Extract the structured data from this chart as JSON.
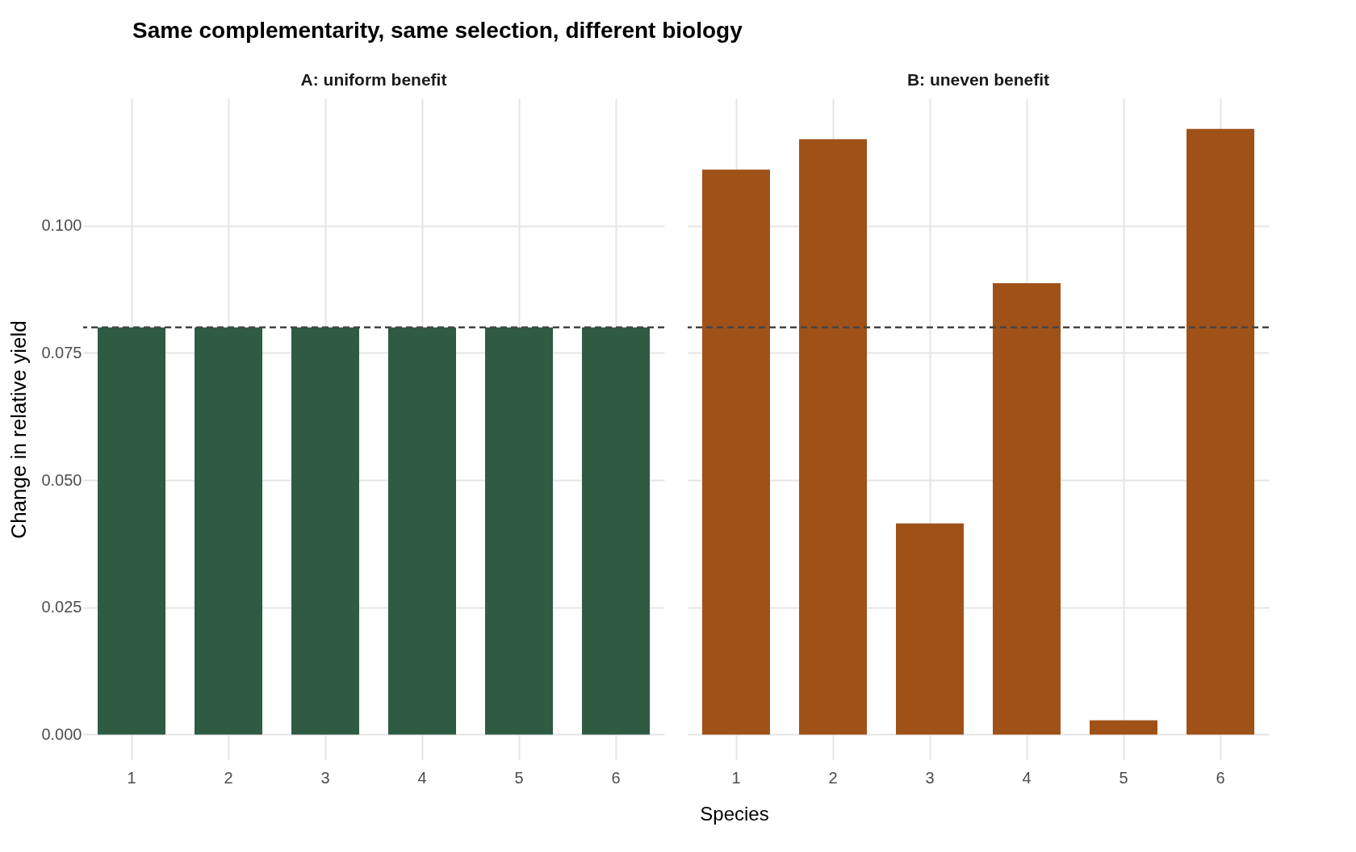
{
  "chart_data": [
    {
      "type": "bar",
      "title": "Same complementarity, same selection, different biology",
      "subtitle": "A: uniform benefit",
      "xlabel": "Species",
      "ylabel": "Change in relative yield",
      "categories": [
        "1",
        "2",
        "3",
        "4",
        "5",
        "6"
      ],
      "values": [
        0.08,
        0.08,
        0.08,
        0.08,
        0.08,
        0.08
      ],
      "color": "#2e5b42",
      "ylim": [
        -0.005,
        0.125
      ],
      "yticks": [
        {
          "value": 0,
          "label": "0.000"
        },
        {
          "value": 0.025,
          "label": "0.025"
        },
        {
          "value": 0.05,
          "label": "0.050"
        },
        {
          "value": 0.075,
          "label": "0.075"
        },
        {
          "value": 0.1,
          "label": "0.100"
        }
      ],
      "grid": true,
      "ref_lines": [
        {
          "axis": "y",
          "value": 0.08,
          "color": "#444444",
          "line_style": "dashed"
        }
      ]
    },
    {
      "type": "bar",
      "subtitle": "B: uneven benefit",
      "categories": [
        "1",
        "2",
        "3",
        "4",
        "5",
        "6"
      ],
      "values": [
        0.111,
        0.117,
        0.0415,
        0.0887,
        0.0028,
        0.119
      ],
      "color": "#a05117",
      "ylim": [
        -0.005,
        0.125
      ],
      "yticks": [
        0,
        0.025,
        0.05,
        0.075,
        0.1
      ],
      "grid": true,
      "tick_labels": "x",
      "ref_lines": [
        {
          "axis": "y",
          "value": 0.08,
          "color": "#444444",
          "line_style": "dashed"
        }
      ]
    }
  ]
}
